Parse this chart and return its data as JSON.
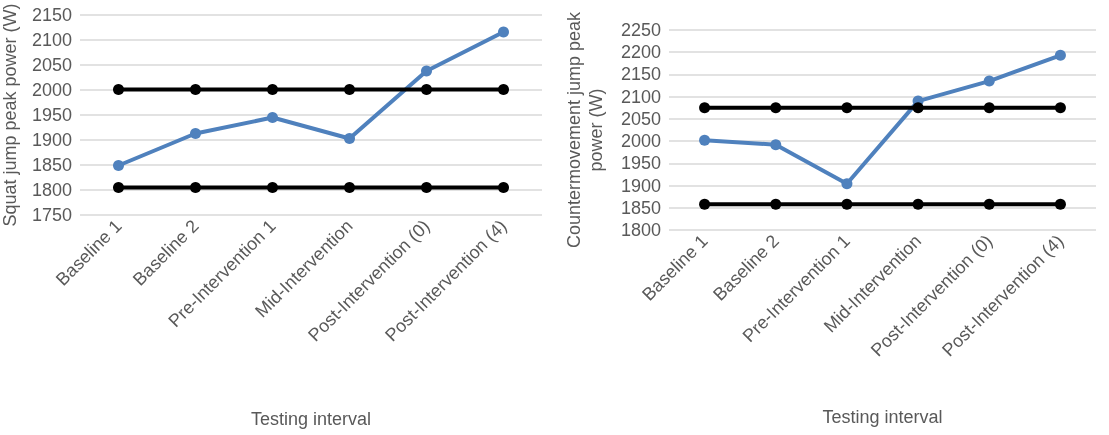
{
  "chart_data": [
    {
      "type": "line",
      "xlabel": "Testing interval",
      "ylabel": "Squat jump peak power (W)",
      "categories": [
        "Baseline 1",
        "Baseline 2",
        "Pre-Intervention 1",
        "Mid-Intervention",
        "Post-Intervention (0)",
        "Post-Intervention (4)"
      ],
      "series": [
        {
          "color": "#4f81bd",
          "values": [
            1849,
            1913,
            1945,
            1903,
            2038,
            2116
          ]
        },
        {
          "color": "#000000",
          "values": [
            2001,
            2001,
            2001,
            2001,
            2001,
            2001
          ]
        },
        {
          "color": "#000000",
          "values": [
            1805,
            1805,
            1805,
            1805,
            1805,
            1805
          ]
        }
      ],
      "ylim": [
        1750,
        2150
      ],
      "yticks": [
        1750,
        1800,
        1850,
        1900,
        1950,
        2000,
        2050,
        2100,
        2150
      ],
      "grid": "y",
      "marker": "circle",
      "line_style": "solid"
    },
    {
      "type": "line",
      "xlabel": "Testing interval",
      "ylabel": "Countermovement jump peak power (W)",
      "categories": [
        "Baseline 1",
        "Baseline 2",
        "Pre-Intervention 1",
        "Mid-Intervention",
        "Post-Intervention (0)",
        "Post-Intervention (4)"
      ],
      "series": [
        {
          "color": "#4f81bd",
          "values": [
            2002,
            1992,
            1904,
            2090,
            2135,
            2193
          ]
        },
        {
          "color": "#000000",
          "values": [
            2075,
            2075,
            2075,
            2075,
            2075,
            2075
          ]
        },
        {
          "color": "#000000",
          "values": [
            1858,
            1858,
            1858,
            1858,
            1858,
            1858
          ]
        }
      ],
      "ylim": [
        1800,
        2250
      ],
      "yticks": [
        1800,
        1850,
        1900,
        1950,
        2000,
        2050,
        2100,
        2150,
        2200,
        2250
      ],
      "grid": "y",
      "marker": "circle",
      "line_style": "solid"
    }
  ]
}
